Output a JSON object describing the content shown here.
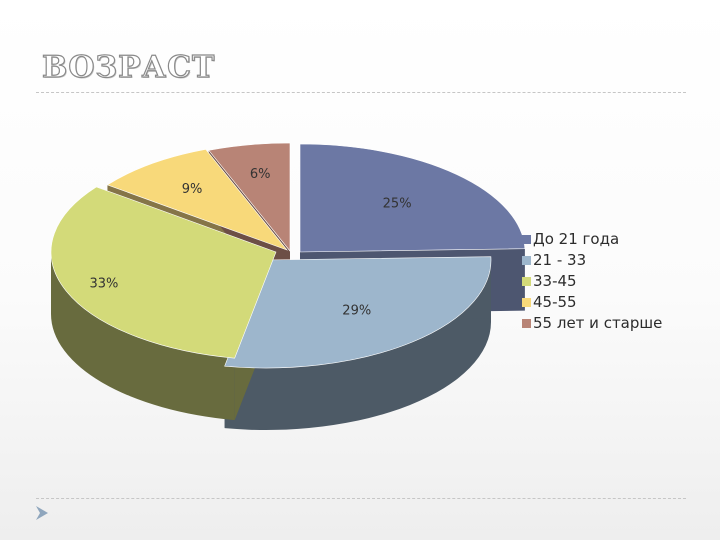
{
  "slide": {
    "title": "ВОЗРАСТ"
  },
  "chart_data": {
    "type": "pie",
    "title": "ВОЗРАСТ",
    "labels": [
      "До 21 года",
      "21 - 33",
      "33-45",
      "45-55",
      "55 лет и старше"
    ],
    "values": [
      25,
      29,
      33,
      9,
      6
    ],
    "value_labels": [
      "25%",
      "29%",
      "33%",
      "9%",
      "6%"
    ],
    "colors": [
      "#6c78a4",
      "#9db6cc",
      "#d3da79",
      "#f8d97a",
      "#b88476"
    ],
    "side_colors": [
      "#4d5670",
      "#4d5a66",
      "#686b3e",
      "#857548",
      "#6d4f46"
    ],
    "legend_position": "right",
    "exploded": true,
    "three_d": true
  },
  "icons": {
    "nav": "triangle-right-icon"
  }
}
